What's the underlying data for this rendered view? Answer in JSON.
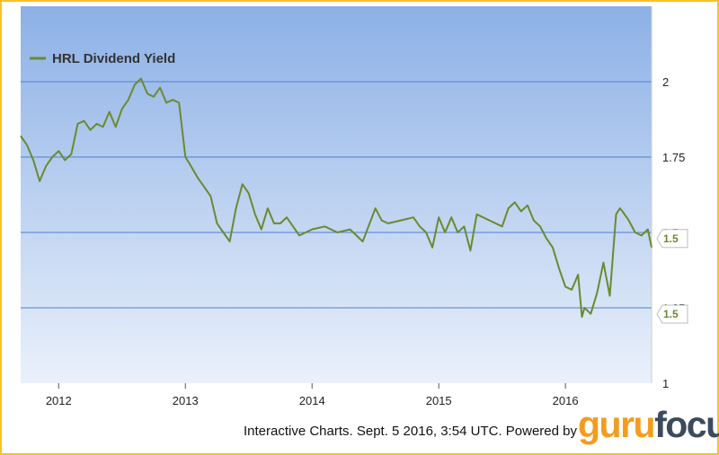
{
  "chart_data": {
    "type": "line",
    "title": "",
    "legend": "HRL Dividend Yield",
    "legend_position": "top-left",
    "series": [
      {
        "name": "HRL Dividend Yield",
        "x": [
          2011.7,
          2011.75,
          2011.8,
          2011.85,
          2011.9,
          2011.95,
          2012.0,
          2012.05,
          2012.1,
          2012.15,
          2012.2,
          2012.25,
          2012.3,
          2012.35,
          2012.4,
          2012.45,
          2012.5,
          2012.55,
          2012.6,
          2012.65,
          2012.7,
          2012.75,
          2012.8,
          2012.85,
          2012.9,
          2012.95,
          2013.0,
          2013.03,
          2013.1,
          2013.15,
          2013.2,
          2013.25,
          2013.3,
          2013.35,
          2013.4,
          2013.45,
          2013.5,
          2013.55,
          2013.6,
          2013.65,
          2013.7,
          2013.75,
          2013.8,
          2013.9,
          2014.0,
          2014.1,
          2014.2,
          2014.3,
          2014.4,
          2014.5,
          2014.55,
          2014.6,
          2014.7,
          2014.8,
          2014.85,
          2014.9,
          2014.95,
          2015.0,
          2015.05,
          2015.1,
          2015.15,
          2015.2,
          2015.25,
          2015.3,
          2015.4,
          2015.5,
          2015.55,
          2015.6,
          2015.65,
          2015.7,
          2015.75,
          2015.8,
          2015.85,
          2015.9,
          2015.95,
          2016.0,
          2016.05,
          2016.08,
          2016.1,
          2016.13,
          2016.15,
          2016.2,
          2016.25,
          2016.3,
          2016.35,
          2016.4,
          2016.43,
          2016.45,
          2016.5,
          2016.55,
          2016.6,
          2016.65,
          2016.68
        ],
        "y": [
          1.82,
          1.79,
          1.74,
          1.67,
          1.72,
          1.75,
          1.77,
          1.74,
          1.76,
          1.86,
          1.87,
          1.84,
          1.86,
          1.85,
          1.9,
          1.85,
          1.91,
          1.94,
          1.99,
          2.01,
          1.96,
          1.95,
          1.98,
          1.93,
          1.94,
          1.93,
          1.75,
          1.73,
          1.68,
          1.65,
          1.62,
          1.53,
          1.5,
          1.47,
          1.58,
          1.66,
          1.63,
          1.56,
          1.51,
          1.58,
          1.53,
          1.53,
          1.55,
          1.49,
          1.51,
          1.52,
          1.5,
          1.51,
          1.47,
          1.58,
          1.54,
          1.53,
          1.54,
          1.55,
          1.52,
          1.5,
          1.45,
          1.55,
          1.5,
          1.55,
          1.5,
          1.52,
          1.44,
          1.56,
          1.54,
          1.52,
          1.58,
          1.6,
          1.57,
          1.59,
          1.54,
          1.52,
          1.48,
          1.45,
          1.38,
          1.32,
          1.31,
          1.34,
          1.36,
          1.22,
          1.25,
          1.23,
          1.3,
          1.4,
          1.29,
          1.56,
          1.58,
          1.57,
          1.54,
          1.5,
          1.49,
          1.51,
          1.45
        ]
      }
    ],
    "x_ticks": [
      "2012",
      "2013",
      "2014",
      "2015",
      "2016"
    ],
    "x_tick_values": [
      2012,
      2013,
      2014,
      2015,
      2016
    ],
    "y_ticks": [
      "1",
      "1.25",
      "1.5",
      "1.75",
      "2"
    ],
    "y_tick_values": [
      1,
      1.25,
      1.5,
      1.75,
      2
    ],
    "xlim": [
      2011.7,
      2016.68
    ],
    "ylim": [
      1,
      2.25
    ],
    "grid": true,
    "end_labels": [
      "1.5",
      "1.5"
    ],
    "colors": {
      "line": "#6b8a2e",
      "plot_bg_top": "#8cb0e6",
      "plot_bg_bottom": "#eaf1fb",
      "grid": "#4a7fd6",
      "frame": "#f5c22b"
    }
  },
  "footer": {
    "text": "Interactive Charts. Sept. 5 2016, 3:54 UTC. Powered by",
    "brand_part1": "guru",
    "brand_part2": "focus"
  }
}
